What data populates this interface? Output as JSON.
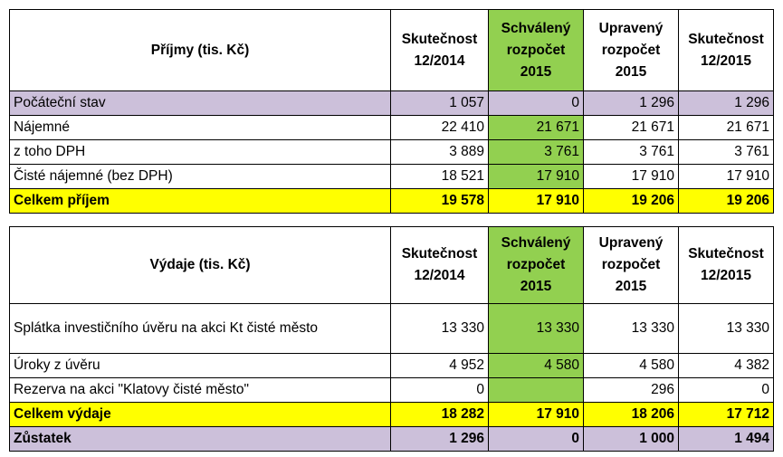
{
  "income": {
    "header": {
      "label": "Příjmy (tis. Kč)",
      "col1": [
        "Skutečnost",
        "12/2014"
      ],
      "col2": [
        "Schválený",
        "rozpočet",
        "2015"
      ],
      "col3": [
        "Upravený",
        "rozpočet",
        "2015"
      ],
      "col4": [
        "Skutečnost",
        "12/2015"
      ]
    },
    "rows": [
      {
        "label": "Počáteční stav",
        "v1": "1 057",
        "v2": "0",
        "v3": "1 296",
        "v4": "1 296"
      },
      {
        "label": "Nájemné",
        "v1": "22 410",
        "v2": "21 671",
        "v3": "21 671",
        "v4": "21 671"
      },
      {
        "label": "z toho DPH",
        "v1": "3 889",
        "v2": "3 761",
        "v3": "3 761",
        "v4": "3 761"
      },
      {
        "label": "Čisté nájemné (bez DPH)",
        "v1": "18 521",
        "v2": "17 910",
        "v3": "17 910",
        "v4": "17 910"
      },
      {
        "label": "Celkem příjem",
        "v1": "19 578",
        "v2": "17 910",
        "v3": "19 206",
        "v4": "19 206"
      }
    ]
  },
  "expense": {
    "header": {
      "label": "Výdaje (tis. Kč)",
      "col1": [
        "Skutečnost",
        "12/2014"
      ],
      "col2": [
        "Schválený",
        "rozpočet",
        "2015"
      ],
      "col3": [
        "Upravený",
        "rozpočet",
        "2015"
      ],
      "col4": [
        "Skutečnost",
        "12/2015"
      ]
    },
    "rows": [
      {
        "label": "Splátka investičního úvěru na akci Kt čisté město",
        "v1": "13 330",
        "v2": "13 330",
        "v3": "13 330",
        "v4": "13 330"
      },
      {
        "label": "Úroky z úvěru",
        "v1": "4 952",
        "v2": "4 580",
        "v3": "4 580",
        "v4": "4 382"
      },
      {
        "label": "Rezerva na akci \"Klatovy čisté město\"",
        "v1": "0",
        "v2": "",
        "v3": "296",
        "v4": "0"
      },
      {
        "label": "Celkem výdaje",
        "v1": "18 282",
        "v2": "17 910",
        "v3": "18 206",
        "v4": "17 712"
      },
      {
        "label": "Zůstatek",
        "v1": "1 296",
        "v2": "0",
        "v3": "1 000",
        "v4": "1 494"
      }
    ]
  },
  "colors": {
    "approved_budget": "#92d050",
    "highlight_row": "#ccc0da",
    "total_row": "#ffff00"
  }
}
